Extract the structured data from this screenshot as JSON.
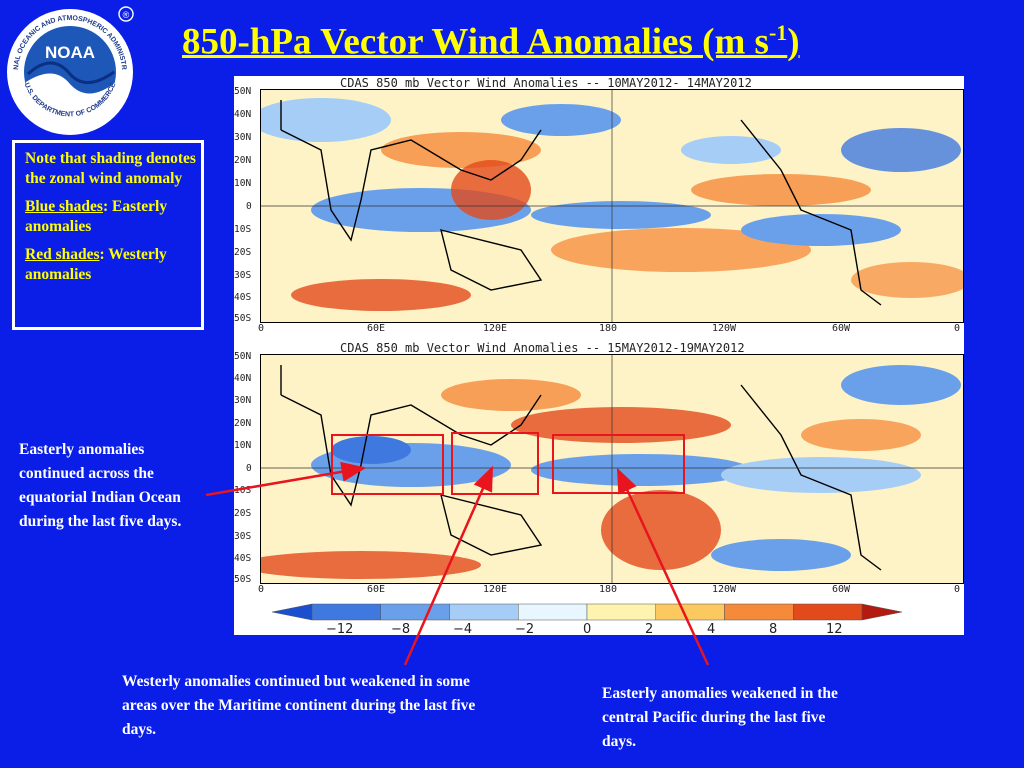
{
  "logo": {
    "text": "NOAA",
    "ring": "NATIONAL OCEANIC AND ATMOSPHERIC ADMINISTRATION",
    "dept": "U.S. DEPARTMENT OF COMMERCE",
    "mark": "®"
  },
  "title": {
    "main": "850-hPa Vector Wind Anomalies  (m s",
    "sup": "-1",
    "end": ")"
  },
  "note": {
    "line1": "Note that shading denotes the zonal wind anomaly",
    "blue_label": "Blue shades",
    "blue_rest": ": Easterly anomalies",
    "red_label": "Red shades",
    "red_rest": ": Westerly anomalies"
  },
  "callouts": {
    "indian": "Easterly anomalies continued across the equatorial Indian Ocean during the last five days.",
    "maritime": "Westerly anomalies continued but weakened in some areas over the Maritime continent during the last five days.",
    "pacific": "Easterly anomalies weakened in the central Pacific during the last five days."
  },
  "panels": [
    {
      "title": "CDAS 850 mb Vector Wind Anomalies -- 10MAY2012- 14MAY2012"
    },
    {
      "title": "CDAS 850 mb Vector Wind Anomalies -- 15MAY2012-19MAY2012"
    }
  ],
  "lat_labels": [
    "50N",
    "40N",
    "30N",
    "20N",
    "10N",
    "0",
    "10S",
    "20S",
    "30S",
    "40S",
    "50S"
  ],
  "lon_labels": [
    "0",
    "60E",
    "120E",
    "180",
    "120W",
    "60W",
    "0"
  ],
  "colorbar": {
    "ticks": [
      "−12",
      "−8",
      "−4",
      "−2",
      "0",
      "2",
      "4",
      "8",
      "12"
    ],
    "colors": [
      "#1a4fd0",
      "#3f79e0",
      "#6aa0ea",
      "#a6cdf5",
      "#e8f6ff",
      "#fff3b0",
      "#fcc860",
      "#f58a3a",
      "#e24a1c",
      "#b31a10"
    ]
  }
}
